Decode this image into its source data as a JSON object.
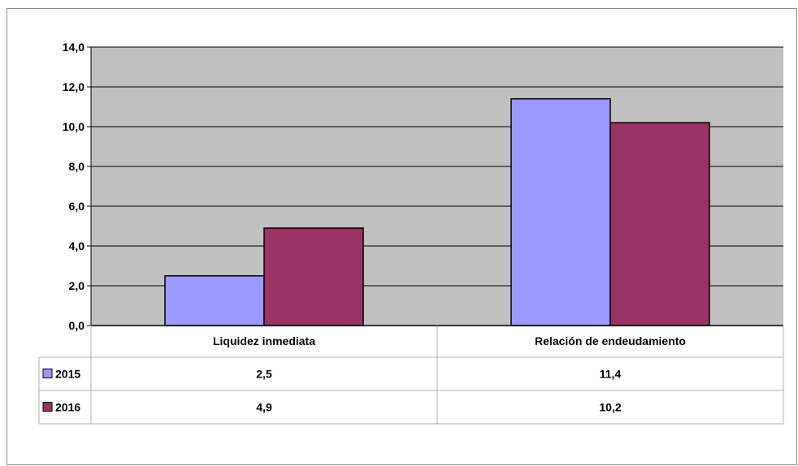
{
  "chart_data": {
    "type": "bar",
    "categories": [
      "Liquidez inmediata",
      "Relación de endeudamiento"
    ],
    "series": [
      {
        "name": "2015",
        "values": [
          2.5,
          11.4
        ],
        "value_labels": [
          "2,5",
          "11,4"
        ],
        "color": "#9999ff"
      },
      {
        "name": "2016",
        "values": [
          4.9,
          10.2
        ],
        "value_labels": [
          "4,9",
          "10,2"
        ],
        "color": "#993366"
      }
    ],
    "ylim": [
      0,
      14
    ],
    "y_ticks": [
      0,
      2,
      4,
      6,
      8,
      10,
      12,
      14
    ],
    "y_tick_labels": [
      "0,0",
      "2,0",
      "4,0",
      "6,0",
      "8,0",
      "10,0",
      "12,0",
      "14,0"
    ],
    "grid": true,
    "plot_background": "#c0c0c0",
    "data_table": true
  }
}
